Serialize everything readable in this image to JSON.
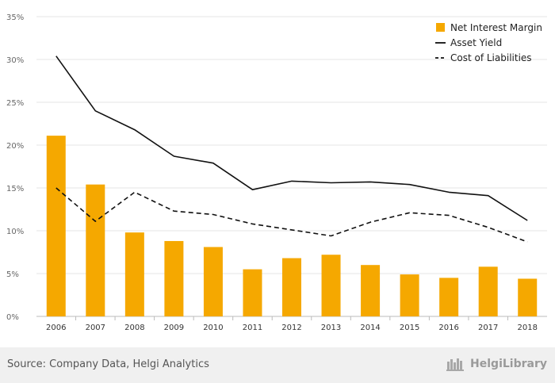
{
  "chart_data": {
    "type": "bar",
    "categories": [
      "2006",
      "2007",
      "2008",
      "2009",
      "2010",
      "2011",
      "2012",
      "2013",
      "2014",
      "2015",
      "2016",
      "2017",
      "2018"
    ],
    "series": [
      {
        "name": "Net Interest Margin",
        "type": "bar",
        "color": "#f5a800",
        "values": [
          21.1,
          15.4,
          9.8,
          8.8,
          8.1,
          5.5,
          6.8,
          7.2,
          6.0,
          4.9,
          4.5,
          5.8,
          4.4
        ]
      },
      {
        "name": "Asset Yield",
        "type": "line",
        "style": "solid",
        "color": "#111111",
        "values": [
          30.4,
          24.0,
          21.8,
          18.7,
          17.9,
          14.8,
          15.8,
          15.6,
          15.7,
          15.4,
          14.5,
          14.1,
          11.2
        ]
      },
      {
        "name": "Cost of Liabilities",
        "type": "line",
        "style": "dashed",
        "color": "#111111",
        "values": [
          15.0,
          11.1,
          14.5,
          12.3,
          11.9,
          10.8,
          10.1,
          9.4,
          11.0,
          12.1,
          11.8,
          10.4,
          8.7
        ]
      }
    ],
    "yticks": [
      "0%",
      "5%",
      "10%",
      "15%",
      "20%",
      "25%",
      "30%",
      "35%"
    ],
    "ylim": [
      0,
      35
    ],
    "grid": true,
    "legend": "top-right"
  },
  "footer": {
    "source": "Source: Company Data, Helgi Analytics",
    "brand": "HelgiLibrary"
  }
}
